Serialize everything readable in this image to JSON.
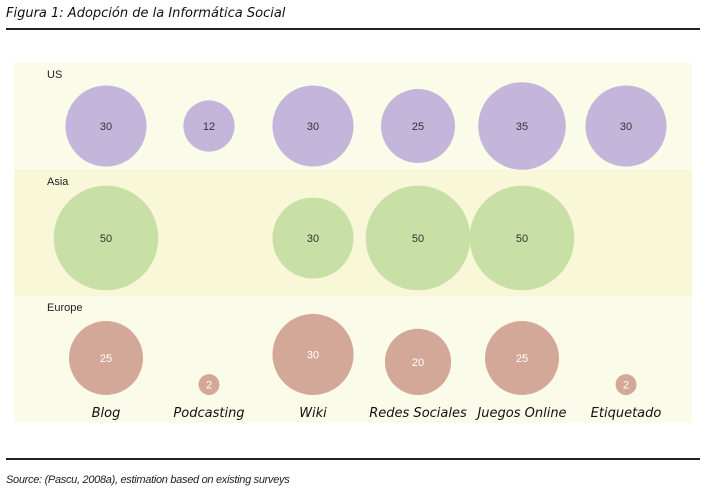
{
  "title": "Figura 1: Adopción de la Informática Social",
  "source": "Source: (Pascu, 2008a), estimation based on existing surveys",
  "chart_data": {
    "type": "bubble",
    "title": "Figura 1: Adopción de la Informática Social",
    "categories": [
      "Blog",
      "Podcasting",
      "Wiki",
      "Redes Sociales",
      "Juegos Online",
      "Etiquetado"
    ],
    "series": [
      {
        "name": "US",
        "color": "#c4b6da",
        "text_color": "#333333",
        "values": [
          30,
          12,
          30,
          25,
          35,
          30
        ]
      },
      {
        "name": "Asia",
        "color": "#c8e0a6",
        "text_color": "#333333",
        "values": [
          50,
          null,
          30,
          50,
          50,
          null
        ]
      },
      {
        "name": "Europe",
        "color": "#d4a898",
        "text_color": "#ffffff",
        "values": [
          25,
          2,
          30,
          20,
          25,
          2
        ]
      }
    ],
    "band_colors": [
      "#fbfbe9",
      "#f8f8d9",
      "#fbfbe9"
    ]
  }
}
